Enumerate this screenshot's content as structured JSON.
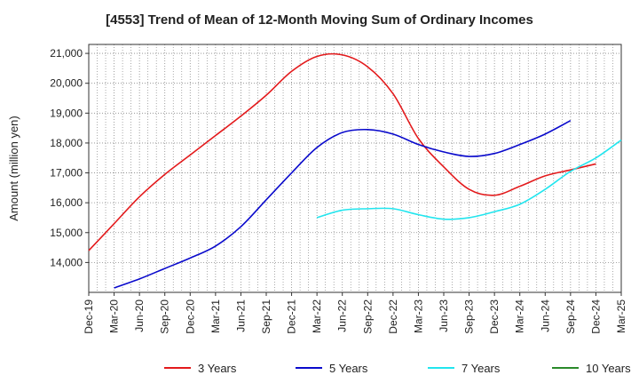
{
  "chart_data": {
    "type": "line",
    "title": "[4553]  Trend of Mean of 12-Month Moving Sum of Ordinary Incomes",
    "xlabel": "",
    "ylabel": "Amount (million yen)",
    "ylim": [
      13000,
      21000
    ],
    "yticks": [
      14000,
      15000,
      16000,
      17000,
      18000,
      19000,
      20000,
      21000
    ],
    "ytick_labels": [
      "14,000",
      "15,000",
      "16,000",
      "17,000",
      "18,000",
      "19,000",
      "20,000",
      "21,000"
    ],
    "x_categories": [
      "Dec-19",
      "Mar-20",
      "Jun-20",
      "Sep-20",
      "Dec-20",
      "Mar-21",
      "Jun-21",
      "Sep-21",
      "Dec-21",
      "Mar-22",
      "Jun-22",
      "Sep-22",
      "Dec-22",
      "Mar-23",
      "Jun-23",
      "Sep-23",
      "Dec-23",
      "Mar-24",
      "Jun-24",
      "Sep-24",
      "Dec-24",
      "Mar-25"
    ],
    "grid": true,
    "legend_position": "bottom",
    "series": [
      {
        "name": "3 Years",
        "color": "#e31a1c",
        "start_index": 0,
        "values": [
          14400,
          15300,
          16200,
          16950,
          17600,
          18250,
          18900,
          19600,
          20400,
          20900,
          20950,
          20550,
          19650,
          18150,
          17200,
          16450,
          16250,
          16550,
          16900,
          17100,
          17300
        ]
      },
      {
        "name": "5 Years",
        "color": "#0a0acc",
        "start_index": 1,
        "values": [
          13150,
          13450,
          13800,
          14150,
          14550,
          15200,
          16100,
          17000,
          17850,
          18350,
          18450,
          18300,
          17950,
          17700,
          17550,
          17650,
          17950,
          18300,
          18750
        ]
      },
      {
        "name": "7 Years",
        "color": "#22e5ee",
        "start_index": 9,
        "values": [
          15500,
          15750,
          15800,
          15800,
          15600,
          15450,
          15500,
          15700,
          15950,
          16450,
          17050,
          17500,
          18100
        ]
      },
      {
        "name": "10 Years",
        "color": "#2a8a2a",
        "start_index": 0,
        "values": []
      }
    ]
  }
}
